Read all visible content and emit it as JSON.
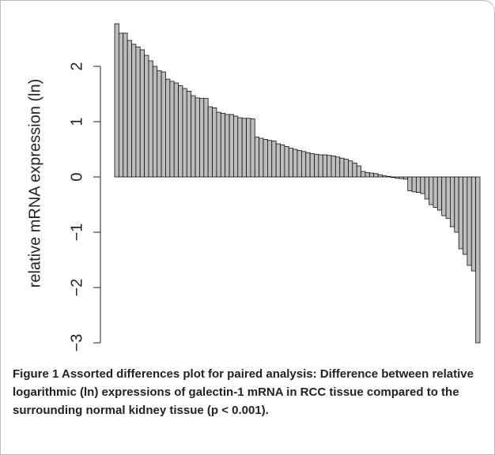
{
  "chart_data": {
    "type": "bar",
    "ylabel": "relative mRNA expression (ln)",
    "caption_label": "Figure 1",
    "caption": "Assorted differences plot for paired analysis: Difference between relative logarithmic (ln) expressions of galectin-1 mRNA in RCC tissue compared to the surrounding normal kidney tissue (p < 0.001).",
    "values": [
      2.77,
      2.6,
      2.6,
      2.47,
      2.4,
      2.35,
      2.3,
      2.2,
      2.1,
      2.0,
      1.92,
      1.9,
      1.77,
      1.73,
      1.7,
      1.65,
      1.6,
      1.55,
      1.47,
      1.43,
      1.42,
      1.42,
      1.27,
      1.25,
      1.17,
      1.15,
      1.13,
      1.13,
      1.1,
      1.07,
      1.06,
      1.06,
      1.05,
      0.72,
      0.7,
      0.68,
      0.66,
      0.65,
      0.6,
      0.58,
      0.55,
      0.52,
      0.5,
      0.48,
      0.46,
      0.44,
      0.42,
      0.41,
      0.4,
      0.4,
      0.39,
      0.38,
      0.36,
      0.34,
      0.32,
      0.29,
      0.25,
      0.2,
      0.1,
      0.08,
      0.07,
      0.06,
      0.04,
      0.02,
      0.01,
      -0.01,
      -0.02,
      -0.03,
      -0.04,
      -0.25,
      -0.27,
      -0.28,
      -0.3,
      -0.4,
      -0.5,
      -0.55,
      -0.6,
      -0.7,
      -0.75,
      -0.9,
      -1.0,
      -1.3,
      -1.4,
      -1.6,
      -1.7,
      -3.0
    ],
    "color": "#bdbdbd",
    "ylim": [
      -3.04,
      2.8
    ],
    "yticks": [
      {
        "value": -3,
        "label": "−3"
      },
      {
        "value": -2,
        "label": "−2"
      },
      {
        "value": -1,
        "label": "−1"
      },
      0,
      1,
      2
    ]
  }
}
